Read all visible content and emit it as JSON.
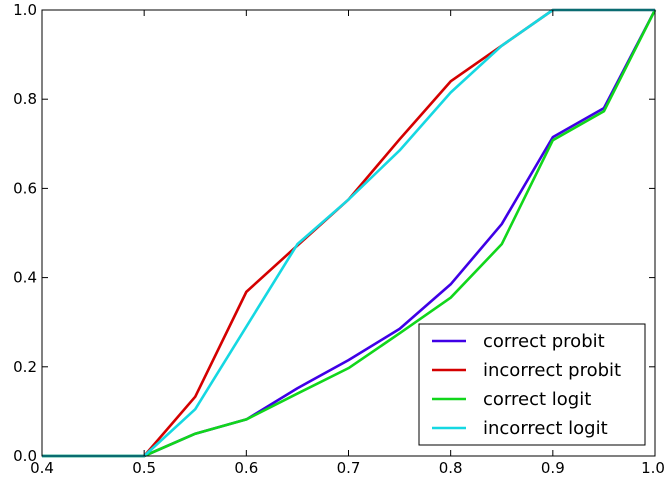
{
  "chart_data": {
    "type": "line",
    "title": "",
    "xlabel": "",
    "ylabel": "",
    "xlim": [
      0.4,
      1.0
    ],
    "ylim": [
      0.0,
      1.0
    ],
    "grid": false,
    "legend_position": "lower-right",
    "x_ticks": [
      "0.4",
      "0.5",
      "0.6",
      "0.7",
      "0.8",
      "0.9",
      "1.0"
    ],
    "y_ticks": [
      "0.0",
      "0.2",
      "0.4",
      "0.6",
      "0.8",
      "1.0"
    ],
    "x_tick_values": [
      0.4,
      0.5,
      0.6,
      0.7,
      0.8,
      0.9,
      1.0
    ],
    "y_tick_values": [
      0.0,
      0.2,
      0.4,
      0.6,
      0.8,
      1.0
    ],
    "x": [
      0.4,
      0.45,
      0.5,
      0.55,
      0.6,
      0.65,
      0.7,
      0.75,
      0.8,
      0.85,
      0.9,
      0.95,
      1.0
    ],
    "series": [
      {
        "name": "correct probit",
        "color": "#3f00e6",
        "values": [
          0.0,
          0.0,
          0.0,
          0.05,
          0.082,
          0.152,
          0.215,
          0.285,
          0.385,
          0.52,
          0.715,
          0.78,
          1.0
        ]
      },
      {
        "name": "incorrect probit",
        "color": "#d40000",
        "values": [
          0.0,
          0.0,
          0.0,
          0.133,
          0.368,
          0.472,
          0.575,
          0.71,
          0.84,
          0.92,
          1.0,
          1.0,
          1.0
        ]
      },
      {
        "name": "correct logit",
        "color": "#11d61b",
        "values": [
          0.0,
          0.0,
          0.0,
          0.05,
          0.082,
          0.14,
          0.197,
          0.275,
          0.355,
          0.475,
          0.708,
          0.773,
          1.0
        ]
      },
      {
        "name": "incorrect logit",
        "color": "#15d8e2",
        "values": [
          0.0,
          0.0,
          0.0,
          0.105,
          0.29,
          0.475,
          0.575,
          0.685,
          0.815,
          0.92,
          1.0,
          1.0,
          1.0
        ]
      }
    ]
  }
}
